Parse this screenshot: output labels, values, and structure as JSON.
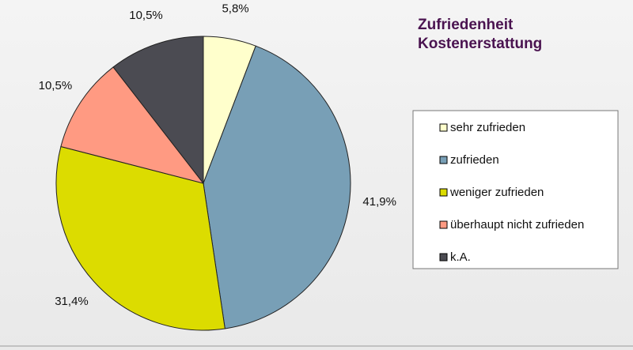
{
  "chart_data": {
    "type": "pie",
    "title": "Zufriedenheit Kostenerstattung",
    "categories": [
      "sehr zufrieden",
      "zufrieden",
      "weniger zufrieden",
      "überhaupt nicht zufrieden",
      "k.A."
    ],
    "values": [
      5.8,
      41.9,
      31.4,
      10.5,
      10.5
    ],
    "value_labels": [
      "5,8%",
      "41,9%",
      "31,4%",
      "10,5%",
      "10,5%"
    ],
    "colors": [
      "#ffffcc",
      "#789fb6",
      "#dcdc00",
      "#ff9a82",
      "#4b4b52"
    ],
    "legend": "right"
  }
}
